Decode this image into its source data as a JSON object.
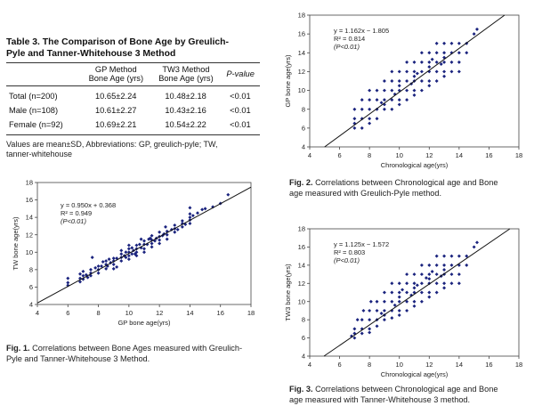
{
  "table": {
    "title_line1": "Table 3. The Comparison of Bone Age by Greulich-",
    "title_line2": "Pyle and Tanner-Whitehouse 3 Method",
    "col1_h1": "GP Method",
    "col1_h2": "Bone Age (yrs)",
    "col2_h1": "TW3 Method",
    "col2_h2": "Bone Age (yrs)",
    "col3_h": "P-value",
    "rows": [
      {
        "label": "Total",
        "n": "(n=200)",
        "gp": "10.65±2.24",
        "tw": "10.48±2.18",
        "p": "<0.01"
      },
      {
        "label": "Male",
        "n": "(n=108)",
        "gp": "10.61±2.27",
        "tw": "10.43±2.16",
        "p": "<0.01"
      },
      {
        "label": "Female",
        "n": "(n=92)",
        "gp": "10.69±2.21",
        "tw": "10.54±2.22",
        "p": "<0.01"
      }
    ],
    "note_line1": "Values are mean±SD, Abbreviations: GP, greulich-pyle; TW,",
    "note_line2": "tanner-whitehouse"
  },
  "figures": {
    "fig1": {
      "label": "Fig. 1.",
      "text_line1": "Correlations between Bone Ages measured with Greulich-",
      "text_line2": "Pyle and Tanner-Whitehouse 3 Method."
    },
    "fig2": {
      "label": "Fig. 2.",
      "text_line1": "Correlations between Chronological age and Bone",
      "text_line2": "age measured with Greulich-Pyle method."
    },
    "fig3": {
      "label": "Fig. 3.",
      "text_line1": "Correlations between Chronological age and Bone",
      "text_line2": "age measured with Tanner-Whitehouse 3 method."
    }
  },
  "chart_data": [
    {
      "id": "fig1",
      "type": "scatter",
      "xlabel": "GP bone age(yrs)",
      "ylabel": "TW bone age(yrs)",
      "xlim": [
        4,
        18
      ],
      "ylim": [
        4,
        18
      ],
      "xticks": [
        4,
        6,
        8,
        10,
        12,
        14,
        16,
        18
      ],
      "yticks": [
        4,
        6,
        8,
        10,
        12,
        14,
        16,
        18
      ],
      "annotation": [
        "y = 0.950x + 0.368",
        "R² = 0.949",
        "(P<0.01)"
      ],
      "fit": {
        "slope": 0.95,
        "intercept": 0.368
      },
      "points": [
        [
          6,
          6.5
        ],
        [
          6,
          7
        ],
        [
          6,
          6.2
        ],
        [
          6.8,
          7
        ],
        [
          6.8,
          7.5
        ],
        [
          6.8,
          6.6
        ],
        [
          7,
          7.3
        ],
        [
          7,
          7.8
        ],
        [
          7,
          6.9
        ],
        [
          7.2,
          7.4
        ],
        [
          7.5,
          8
        ],
        [
          7.5,
          7.3
        ],
        [
          7.5,
          7.6
        ],
        [
          7.6,
          9.4
        ],
        [
          7.8,
          8.2
        ],
        [
          8,
          8
        ],
        [
          8,
          8.4
        ],
        [
          8,
          7.6
        ],
        [
          8.2,
          8.4
        ],
        [
          8.5,
          8.6
        ],
        [
          8.5,
          8.1
        ],
        [
          8.5,
          9
        ],
        [
          8.7,
          9.2
        ],
        [
          8.8,
          8.8
        ],
        [
          9,
          9
        ],
        [
          9,
          8.6
        ],
        [
          9,
          9.3
        ],
        [
          9,
          8.1
        ],
        [
          9.2,
          9.3
        ],
        [
          9.5,
          9.4
        ],
        [
          9.5,
          9.8
        ],
        [
          9.5,
          9
        ],
        [
          9.5,
          10.2
        ],
        [
          9.7,
          9.6
        ],
        [
          9.8,
          10
        ],
        [
          10,
          9.6
        ],
        [
          10,
          10
        ],
        [
          10,
          10.4
        ],
        [
          10,
          9.2
        ],
        [
          10,
          10.8
        ],
        [
          10.2,
          9.8
        ],
        [
          10.2,
          10.5
        ],
        [
          10.3,
          10.2
        ],
        [
          10.5,
          10
        ],
        [
          10.5,
          10.4
        ],
        [
          10.5,
          10.8
        ],
        [
          10.5,
          9.6
        ],
        [
          10.7,
          10.9
        ],
        [
          10.8,
          10.5
        ],
        [
          11,
          10.4
        ],
        [
          11,
          10.9
        ],
        [
          11,
          11.3
        ],
        [
          11,
          10
        ],
        [
          11.2,
          10.9
        ],
        [
          11.3,
          11.5
        ],
        [
          11.5,
          11
        ],
        [
          11.5,
          11.4
        ],
        [
          11.5,
          11.9
        ],
        [
          11.5,
          10.6
        ],
        [
          11.7,
          11.3
        ],
        [
          11.8,
          11.6
        ],
        [
          12,
          11.4
        ],
        [
          12,
          11.8
        ],
        [
          12,
          12.3
        ],
        [
          12,
          11
        ],
        [
          12.2,
          11.9
        ],
        [
          12.3,
          12.1
        ],
        [
          12.5,
          12
        ],
        [
          12.5,
          12.4
        ],
        [
          12.5,
          11.5
        ],
        [
          12.8,
          12.6
        ],
        [
          13,
          12.3
        ],
        [
          13,
          12.7
        ],
        [
          13,
          13.1
        ],
        [
          13.2,
          12.6
        ],
        [
          13.5,
          12.9
        ],
        [
          13.5,
          13.3
        ],
        [
          13.5,
          13.6
        ],
        [
          13.7,
          13.2
        ],
        [
          14,
          13.3
        ],
        [
          14,
          13.7
        ],
        [
          14,
          14
        ],
        [
          14,
          14.4
        ],
        [
          14.2,
          14.2
        ],
        [
          14.5,
          14.5
        ],
        [
          14.8,
          14.9
        ],
        [
          14,
          15.1
        ],
        [
          15,
          15
        ],
        [
          15.5,
          15.2
        ],
        [
          16,
          15.6
        ],
        [
          16.5,
          16.6
        ],
        [
          8.3,
          8.9
        ],
        [
          9.2,
          8.3
        ],
        [
          10.8,
          11.5
        ],
        [
          12.4,
          12.9
        ],
        [
          11.4,
          11.6
        ],
        [
          10.4,
          9.8
        ],
        [
          9.8,
          9.4
        ],
        [
          8.6,
          8.4
        ],
        [
          7.3,
          7.1
        ]
      ]
    },
    {
      "id": "fig2",
      "type": "scatter",
      "xlabel": "Chronological age(yrs)",
      "ylabel": "GP bone age(yrs)",
      "xlim": [
        4,
        18
      ],
      "ylim": [
        4,
        18
      ],
      "xticks": [
        4,
        6,
        8,
        10,
        12,
        14,
        16,
        18
      ],
      "yticks": [
        4,
        6,
        8,
        10,
        12,
        14,
        16,
        18
      ],
      "annotation": [
        "y = 1.162x − 1.805",
        "R² = 0.814",
        "(P<0.01)"
      ],
      "fit": {
        "slope": 1.162,
        "intercept": -1.805
      },
      "points": [
        [
          7,
          6
        ],
        [
          7,
          6.5
        ],
        [
          7,
          7
        ],
        [
          7,
          8
        ],
        [
          7.5,
          6
        ],
        [
          7.5,
          7
        ],
        [
          7.5,
          8
        ],
        [
          7.5,
          9
        ],
        [
          8,
          7
        ],
        [
          8,
          8
        ],
        [
          8,
          9
        ],
        [
          8,
          6.5
        ],
        [
          8,
          10
        ],
        [
          8.5,
          8
        ],
        [
          8.5,
          9
        ],
        [
          8.5,
          10
        ],
        [
          8.5,
          7
        ],
        [
          9,
          8
        ],
        [
          9,
          9
        ],
        [
          9,
          10
        ],
        [
          9,
          11
        ],
        [
          9,
          8.5
        ],
        [
          9.5,
          9
        ],
        [
          9.5,
          10
        ],
        [
          9.5,
          11
        ],
        [
          9.5,
          8
        ],
        [
          9.5,
          12
        ],
        [
          10,
          9
        ],
        [
          10,
          10
        ],
        [
          10,
          11
        ],
        [
          10,
          12
        ],
        [
          10,
          8.5
        ],
        [
          10,
          10.5
        ],
        [
          10.5,
          10
        ],
        [
          10.5,
          11
        ],
        [
          10.5,
          12
        ],
        [
          10.5,
          9
        ],
        [
          10.5,
          13
        ],
        [
          11,
          10
        ],
        [
          11,
          11
        ],
        [
          11,
          12
        ],
        [
          11,
          13
        ],
        [
          11,
          9.5
        ],
        [
          11,
          11.5
        ],
        [
          11.5,
          11
        ],
        [
          11.5,
          12
        ],
        [
          11.5,
          13
        ],
        [
          11.5,
          10
        ],
        [
          11.5,
          14
        ],
        [
          12,
          11
        ],
        [
          12,
          12
        ],
        [
          12,
          13
        ],
        [
          12,
          14
        ],
        [
          12,
          10.5
        ],
        [
          12,
          12.5
        ],
        [
          12.5,
          12
        ],
        [
          12.5,
          13
        ],
        [
          12.5,
          14
        ],
        [
          12.5,
          11
        ],
        [
          12.5,
          15
        ],
        [
          13,
          12
        ],
        [
          13,
          13
        ],
        [
          13,
          14
        ],
        [
          13,
          15
        ],
        [
          13,
          11.5
        ],
        [
          13,
          13.5
        ],
        [
          13.5,
          13
        ],
        [
          13.5,
          14
        ],
        [
          13.5,
          15
        ],
        [
          13.5,
          12
        ],
        [
          14,
          13
        ],
        [
          14,
          14
        ],
        [
          14,
          15
        ],
        [
          14,
          12
        ],
        [
          14.5,
          14
        ],
        [
          14.5,
          15
        ],
        [
          15,
          16
        ],
        [
          15.2,
          16.5
        ],
        [
          11.2,
          11.8
        ],
        [
          10.8,
          10.7
        ],
        [
          12.2,
          13.3
        ],
        [
          9.7,
          9.6
        ],
        [
          8.8,
          8.7
        ],
        [
          12.8,
          12.8
        ]
      ]
    },
    {
      "id": "fig3",
      "type": "scatter",
      "xlabel": "Chronological age(yrs)",
      "ylabel": "TW3 bone age(yrs)",
      "xlim": [
        4,
        18
      ],
      "ylim": [
        4,
        18
      ],
      "xticks": [
        4,
        6,
        8,
        10,
        12,
        14,
        16,
        18
      ],
      "yticks": [
        4,
        6,
        8,
        10,
        12,
        14,
        16,
        18
      ],
      "annotation": [
        "y = 1.125x − 1.572",
        "R² = 0.803",
        "(P<0.01)"
      ],
      "fit": {
        "slope": 1.125,
        "intercept": -1.572
      },
      "points": [
        [
          7,
          6
        ],
        [
          7,
          6.5
        ],
        [
          7,
          7
        ],
        [
          7.2,
          8
        ],
        [
          7.5,
          6.5
        ],
        [
          7.5,
          7
        ],
        [
          7.5,
          8
        ],
        [
          7.6,
          9
        ],
        [
          8,
          7
        ],
        [
          8,
          8
        ],
        [
          8,
          9
        ],
        [
          8,
          6.6
        ],
        [
          8.1,
          10
        ],
        [
          8.5,
          8
        ],
        [
          8.5,
          9
        ],
        [
          8.5,
          10
        ],
        [
          8.5,
          7.3
        ],
        [
          9,
          8
        ],
        [
          9,
          9
        ],
        [
          9,
          10
        ],
        [
          9,
          11
        ],
        [
          9,
          8.5
        ],
        [
          9.5,
          9
        ],
        [
          9.5,
          10
        ],
        [
          9.5,
          11
        ],
        [
          9.5,
          8.2
        ],
        [
          9.5,
          12
        ],
        [
          10,
          9
        ],
        [
          10,
          10
        ],
        [
          10,
          11
        ],
        [
          10,
          12
        ],
        [
          10,
          8.5
        ],
        [
          10,
          10.5
        ],
        [
          10.5,
          10
        ],
        [
          10.5,
          11
        ],
        [
          10.5,
          12
        ],
        [
          10.5,
          9
        ],
        [
          10.5,
          13
        ],
        [
          11,
          10
        ],
        [
          11,
          11
        ],
        [
          11,
          12
        ],
        [
          11,
          13
        ],
        [
          11,
          9.5
        ],
        [
          11,
          11.5
        ],
        [
          11.5,
          11
        ],
        [
          11.5,
          12
        ],
        [
          11.5,
          13
        ],
        [
          11.5,
          10
        ],
        [
          11.5,
          14
        ],
        [
          12,
          11
        ],
        [
          12,
          12
        ],
        [
          12,
          13
        ],
        [
          12,
          14
        ],
        [
          12,
          10.5
        ],
        [
          12,
          12.5
        ],
        [
          12.5,
          12
        ],
        [
          12.5,
          13
        ],
        [
          12.5,
          14
        ],
        [
          12.5,
          11
        ],
        [
          12.5,
          15
        ],
        [
          13,
          12
        ],
        [
          13,
          13
        ],
        [
          13,
          14
        ],
        [
          13,
          15
        ],
        [
          13,
          11.5
        ],
        [
          13,
          13.5
        ],
        [
          13.5,
          13
        ],
        [
          13.5,
          14
        ],
        [
          13.5,
          15
        ],
        [
          13.5,
          12
        ],
        [
          14,
          13
        ],
        [
          14,
          14
        ],
        [
          14,
          15
        ],
        [
          14,
          12
        ],
        [
          14.5,
          14
        ],
        [
          14.5,
          15
        ],
        [
          15,
          16
        ],
        [
          15.2,
          16.5
        ],
        [
          6.8,
          6.2
        ],
        [
          11.2,
          11.8
        ],
        [
          10.8,
          10.7
        ],
        [
          12.2,
          13.3
        ],
        [
          9.7,
          9.6
        ],
        [
          8.8,
          8.7
        ],
        [
          12.8,
          12.8
        ],
        [
          10.2,
          11.3
        ],
        [
          11.8,
          12.6
        ]
      ]
    }
  ]
}
